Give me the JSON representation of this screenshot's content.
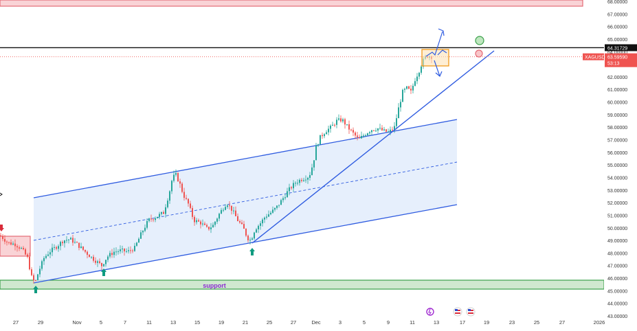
{
  "chart_data": {
    "type": "candlestick",
    "symbol": "XAGUSD",
    "last_price": "63.59590",
    "countdown": "53:13",
    "resistance_price": "64.31729",
    "support_label": "support",
    "y_ticks": [
      "68.00000",
      "67.00000",
      "66.00000",
      "65.00000",
      "64.00000",
      "63.00000",
      "62.00000",
      "61.00000",
      "60.00000",
      "59.00000",
      "58.00000",
      "57.00000",
      "56.00000",
      "55.00000",
      "54.00000",
      "53.00000",
      "52.00000",
      "51.00000",
      "50.00000",
      "49.00000",
      "48.00000",
      "47.00000",
      "46.00000",
      "45.00000",
      "44.00000",
      "43.00000"
    ],
    "x_ticks": [
      "27",
      "29",
      "Nov",
      "5",
      "7",
      "11",
      "13",
      "15",
      "19",
      "21",
      "25",
      "27",
      "Dec",
      "3",
      "5",
      "9",
      "11",
      "13",
      "17",
      "19",
      "23",
      "25",
      "27",
      "2026"
    ],
    "ylim": [
      43,
      68.5
    ],
    "price_path": [
      [
        0,
        49.4
      ],
      [
        12,
        48.8
      ],
      [
        22,
        48.7
      ],
      [
        32,
        48.3
      ],
      [
        40,
        47.6
      ],
      [
        46,
        46.1
      ],
      [
        51,
        45.6
      ],
      [
        56,
        46.5
      ],
      [
        64,
        47.6
      ],
      [
        72,
        48.1
      ],
      [
        82,
        48.5
      ],
      [
        92,
        49.0
      ],
      [
        102,
        49.1
      ],
      [
        112,
        48.7
      ],
      [
        122,
        48.2
      ],
      [
        132,
        47.7
      ],
      [
        141,
        47.3
      ],
      [
        148,
        47.0
      ],
      [
        156,
        47.7
      ],
      [
        166,
        48.1
      ],
      [
        176,
        48.2
      ],
      [
        186,
        48.1
      ],
      [
        196,
        48.4
      ],
      [
        206,
        49.6
      ],
      [
        216,
        50.6
      ],
      [
        228,
        50.9
      ],
      [
        238,
        51.2
      ],
      [
        246,
        52.7
      ],
      [
        251,
        54.0
      ],
      [
        256,
        54.2
      ],
      [
        261,
        53.6
      ],
      [
        267,
        52.6
      ],
      [
        274,
        51.9
      ],
      [
        282,
        50.6
      ],
      [
        292,
        50.4
      ],
      [
        302,
        49.9
      ],
      [
        310,
        50.2
      ],
      [
        320,
        51.2
      ],
      [
        330,
        52.0
      ],
      [
        338,
        51.4
      ],
      [
        346,
        50.6
      ],
      [
        354,
        50.0
      ],
      [
        360,
        49.2
      ],
      [
        365,
        49.0
      ],
      [
        371,
        49.9
      ],
      [
        378,
        50.3
      ],
      [
        386,
        50.9
      ],
      [
        394,
        51.2
      ],
      [
        402,
        51.6
      ],
      [
        410,
        52.2
      ],
      [
        420,
        53.0
      ],
      [
        430,
        53.6
      ],
      [
        440,
        53.9
      ],
      [
        450,
        54.1
      ],
      [
        456,
        55.2
      ],
      [
        460,
        56.4
      ],
      [
        466,
        57.2
      ],
      [
        474,
        57.7
      ],
      [
        482,
        58.0
      ],
      [
        490,
        58.5
      ],
      [
        498,
        58.6
      ],
      [
        506,
        58.0
      ],
      [
        514,
        57.5
      ],
      [
        522,
        57.0
      ],
      [
        530,
        57.4
      ],
      [
        540,
        57.8
      ],
      [
        550,
        57.9
      ],
      [
        558,
        57.7
      ],
      [
        566,
        57.6
      ],
      [
        574,
        58.0
      ],
      [
        580,
        59.5
      ],
      [
        586,
        60.8
      ],
      [
        592,
        61.1
      ],
      [
        598,
        60.8
      ],
      [
        604,
        61.8
      ],
      [
        610,
        62.5
      ],
      [
        614,
        63.1
      ],
      [
        618,
        63.5
      ],
      [
        623,
        63.7
      ],
      [
        628,
        63.6
      ]
    ],
    "annotations": {
      "support_zone_low": 45.1,
      "support_zone_high": 45.9,
      "top_zone_low": 68.0,
      "top_zone_high": 68.6
    }
  }
}
